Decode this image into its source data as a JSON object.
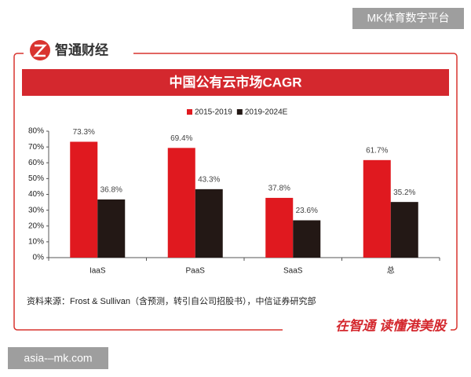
{
  "watermark": "MK体育数字平台",
  "brand": "智通财经",
  "footer_slogan": "在智通 读懂港美股",
  "site": "asia-–mk.com",
  "chart_data": {
    "type": "bar",
    "title": "中国公有云市场CAGR",
    "categories": [
      "IaaS",
      "PaaS",
      "SaaS",
      "总"
    ],
    "series": [
      {
        "name": "2015-2019",
        "color": "#e0191f",
        "values": [
          73.3,
          69.4,
          37.8,
          61.7
        ],
        "value_labels": [
          "73.3%",
          "69.4%",
          "37.8%",
          "61.7%"
        ]
      },
      {
        "name": "2019-2024E",
        "color": "#231815",
        "values": [
          36.8,
          43.3,
          23.6,
          35.2
        ],
        "value_labels": [
          "36.8%",
          "43.3%",
          "23.6%",
          "35.2%"
        ]
      }
    ],
    "ylim": [
      0,
      80
    ],
    "yticks": [
      {
        "value": 0,
        "label": "0%"
      },
      {
        "value": 10,
        "label": "10%"
      },
      {
        "value": 20,
        "label": "20%"
      },
      {
        "value": 30,
        "label": "30%"
      },
      {
        "value": 40,
        "label": "40%"
      },
      {
        "value": 50,
        "label": "50%"
      },
      {
        "value": 60,
        "label": "60%"
      },
      {
        "value": 70,
        "label": "70%"
      },
      {
        "value": 80,
        "label": "80%"
      }
    ],
    "source": "资料来源：Frost & Sullivan（含预测，转引自公司招股书），中信证券研究部"
  }
}
